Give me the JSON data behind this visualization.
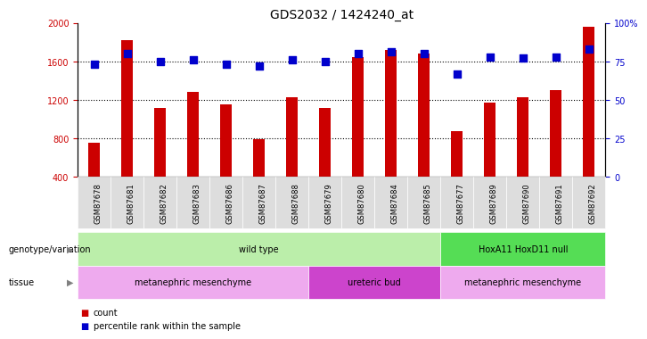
{
  "title": "GDS2032 / 1424240_at",
  "samples": [
    "GSM87678",
    "GSM87681",
    "GSM87682",
    "GSM87683",
    "GSM87686",
    "GSM87687",
    "GSM87688",
    "GSM87679",
    "GSM87680",
    "GSM87684",
    "GSM87685",
    "GSM87677",
    "GSM87689",
    "GSM87690",
    "GSM87691",
    "GSM87692"
  ],
  "counts": [
    750,
    1820,
    1120,
    1280,
    1150,
    790,
    1230,
    1120,
    1640,
    1720,
    1680,
    870,
    1170,
    1230,
    1300,
    1960
  ],
  "percentile_ranks": [
    73,
    80,
    75,
    76,
    73,
    72,
    76,
    75,
    80,
    81,
    80,
    67,
    78,
    77,
    78,
    83
  ],
  "bar_color": "#cc0000",
  "dot_color": "#0000cc",
  "ylim_left": [
    400,
    2000
  ],
  "ylim_right": [
    0,
    100
  ],
  "yticks_left": [
    400,
    800,
    1200,
    1600,
    2000
  ],
  "yticks_right": [
    0,
    25,
    50,
    75,
    100
  ],
  "ytick_labels_right": [
    "0",
    "25",
    "50",
    "75",
    "100%"
  ],
  "grid_values": [
    800,
    1200,
    1600
  ],
  "genotype_groups": [
    {
      "label": "wild type",
      "start": 0,
      "end": 10,
      "color": "#bbeeaa"
    },
    {
      "label": "HoxA11 HoxD11 null",
      "start": 11,
      "end": 15,
      "color": "#55dd55"
    }
  ],
  "tissue_groups": [
    {
      "label": "metanephric mesenchyme",
      "start": 0,
      "end": 6,
      "color": "#eeaaee"
    },
    {
      "label": "ureteric bud",
      "start": 7,
      "end": 10,
      "color": "#cc44cc"
    },
    {
      "label": "metanephric mesenchyme",
      "start": 11,
      "end": 15,
      "color": "#eeaaee"
    }
  ],
  "bar_width": 0.35,
  "dot_size": 30,
  "title_fontsize": 10,
  "tick_fontsize": 7,
  "annot_fontsize": 8
}
